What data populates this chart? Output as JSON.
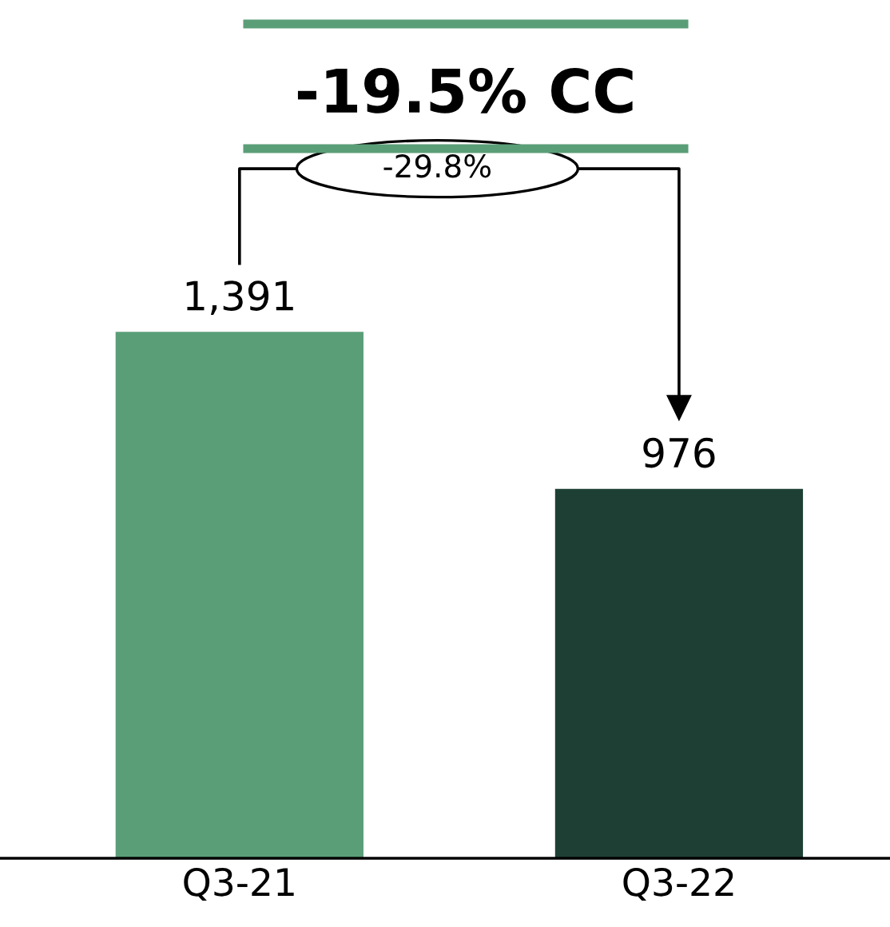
{
  "chart_data": {
    "type": "bar",
    "title": "-19.5% CC",
    "categories": [
      "Q3-21",
      "Q3-22"
    ],
    "values": [
      1391,
      976
    ],
    "colors": [
      "#5a9e78",
      "#1e4034"
    ],
    "value_labels": [
      "1,391",
      "976"
    ],
    "annotations": [
      "-29.8%"
    ],
    "grid": false,
    "legend": false
  }
}
